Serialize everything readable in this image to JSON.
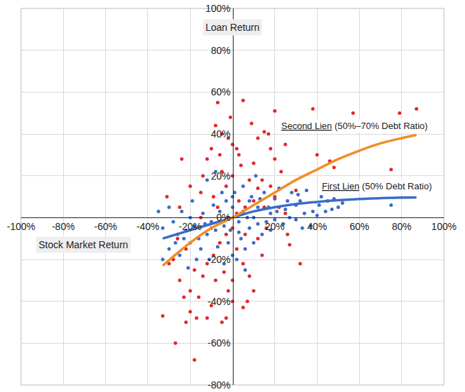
{
  "chart_data": {
    "type": "scatter",
    "x_label": "Stock Market Return",
    "y_label": "Loan Return",
    "xlim": [
      -100,
      100
    ],
    "ylim": [
      -80,
      100
    ],
    "xticks": [
      {
        "value": -100,
        "label": "-100%"
      },
      {
        "value": -80,
        "label": "-80%"
      },
      {
        "value": -60,
        "label": "-60%"
      },
      {
        "value": -40,
        "label": "-40%"
      },
      {
        "value": -20,
        "label": "-20%"
      },
      {
        "value": 20,
        "label": "20%"
      },
      {
        "value": 40,
        "label": "40%"
      },
      {
        "value": 60,
        "label": "60%"
      },
      {
        "value": 80,
        "label": "80%"
      },
      {
        "value": 100,
        "label": "100%"
      }
    ],
    "yticks": [
      {
        "value": -80,
        "label": "-80%"
      },
      {
        "value": -60,
        "label": "-60%"
      },
      {
        "value": -40,
        "label": "-40%"
      },
      {
        "value": -20,
        "label": "-20%"
      },
      {
        "value": 0,
        "label": "0%"
      },
      {
        "value": 20,
        "label": "20%"
      },
      {
        "value": 40,
        "label": "40%"
      },
      {
        "value": 60,
        "label": "60%"
      },
      {
        "value": 80,
        "label": "80%"
      },
      {
        "value": 100,
        "label": "100%"
      }
    ],
    "grid": true,
    "series": [
      {
        "name": "First Lien",
        "label": "(50% Debt Ratio)",
        "color": "#3a6bc6",
        "marker": "circle",
        "x": [
          75,
          52,
          48,
          45,
          42,
          38,
          35,
          32,
          30,
          28,
          25,
          22,
          20,
          18,
          15,
          12,
          10,
          8,
          5,
          3,
          0,
          -2,
          -4,
          -6,
          -8,
          -10,
          -12,
          -14,
          -16,
          -18,
          -20,
          -22,
          -24,
          -26,
          -28,
          -30,
          -33,
          -33,
          -35,
          -30,
          -25,
          -20,
          -15,
          -12,
          -8,
          -5,
          -2,
          0,
          2,
          4,
          6,
          8,
          10,
          12,
          14,
          16,
          18,
          20,
          24,
          27,
          30,
          34,
          37,
          40,
          44,
          47,
          50,
          -3,
          1,
          -7,
          -11,
          -17,
          -21,
          5,
          9,
          13,
          17,
          21,
          26,
          31,
          -1,
          3,
          7,
          -9,
          -13,
          -19,
          -23,
          -27,
          11,
          6,
          0,
          33,
          41,
          -4
        ],
        "values": [
          6,
          7,
          9,
          8,
          10,
          3,
          13,
          8,
          6,
          12,
          4,
          14,
          9,
          2,
          12,
          5,
          0,
          8,
          3,
          -2,
          5,
          0,
          -4,
          3,
          -6,
          -2,
          -8,
          2,
          -10,
          -4,
          -12,
          -6,
          3,
          -8,
          -2,
          -15,
          -20,
          -5,
          3,
          5,
          -18,
          0,
          -15,
          18,
          22,
          12,
          -12,
          -18,
          -20,
          -10,
          -15,
          -5,
          -12,
          -3,
          -8,
          -2,
          -6,
          -1,
          -3,
          0,
          -1,
          2,
          -4,
          1,
          3,
          4,
          5,
          8,
          12,
          -14,
          -20,
          -20,
          -24,
          15,
          10,
          9,
          5,
          3,
          8,
          11,
          -6,
          -7,
          0,
          6,
          -3,
          8,
          -10,
          -12,
          20,
          -25,
          10,
          -5,
          6,
          -22
        ],
        "fit": {
          "color": "#3b6cc7",
          "line_style": "solid",
          "x": [
            -33,
            -20,
            -10,
            0,
            10,
            20,
            30,
            40,
            50,
            60,
            70,
            80,
            87
          ],
          "values": [
            -10,
            -6,
            -3,
            0,
            3,
            5,
            6.5,
            7.5,
            8.3,
            8.9,
            9.3,
            9.6,
            9.7
          ]
        }
      },
      {
        "name": "Second Lien",
        "label": "(50%–70% Debt Ratio)",
        "color": "#e3262b",
        "marker": "circle",
        "x": [
          -33,
          -27,
          -18,
          -22,
          -17,
          87,
          79,
          57,
          38,
          31,
          25,
          20,
          5,
          -7,
          -8,
          -5,
          -2,
          0,
          3,
          15,
          17,
          20,
          23,
          30,
          40,
          46,
          48,
          75,
          32,
          27,
          26,
          10,
          5,
          7,
          0,
          -3,
          -5,
          -12,
          -16,
          -20,
          -25,
          -28,
          -30,
          -24,
          -31,
          -20,
          -15,
          -10,
          -12,
          -5,
          -3,
          0,
          4,
          8,
          10,
          12,
          14,
          18,
          20,
          22,
          25,
          15,
          10,
          6,
          2,
          0,
          -3,
          -6,
          -9,
          -12,
          -14,
          -18,
          -22,
          -26,
          -10,
          -7,
          -15,
          -18,
          -8,
          -4,
          2,
          5,
          8,
          12,
          16,
          0,
          -2,
          -10,
          9,
          -14,
          -6,
          3,
          6,
          -20,
          -23,
          14,
          -1,
          18,
          12,
          -9,
          -25,
          2
        ],
        "values": [
          -47,
          -60,
          -68,
          -50,
          -48,
          52,
          50,
          50,
          52,
          44,
          35,
          51,
          56,
          55,
          44,
          40,
          38,
          35,
          30,
          41,
          40,
          28,
          22,
          13,
          30,
          27,
          24,
          23,
          -22,
          -13,
          -8,
          -35,
          -43,
          -40,
          -40,
          -48,
          -50,
          -48,
          -38,
          -35,
          -30,
          -20,
          -22,
          28,
          10,
          15,
          12,
          33,
          28,
          22,
          15,
          20,
          25,
          18,
          26,
          14,
          18,
          15,
          10,
          5,
          2,
          5,
          8,
          5,
          2,
          -5,
          -8,
          -12,
          -18,
          -22,
          -28,
          -25,
          -15,
          -10,
          -5,
          5,
          0,
          -5,
          -30,
          -26,
          -15,
          -22,
          -28,
          -10,
          -5,
          -30,
          -35,
          -42,
          45,
          20,
          30,
          8,
          -8,
          -45,
          -38,
          -18,
          48,
          33,
          38,
          10,
          5,
          33
        ],
        "fit": {
          "color": "#f28c28",
          "line_style": "solid",
          "x": [
            -33,
            -20,
            -10,
            0,
            10,
            20,
            30,
            40,
            50,
            60,
            70,
            80,
            87
          ],
          "values": [
            -23,
            -12,
            -5,
            0,
            6,
            12,
            18,
            23,
            28,
            32,
            35.5,
            38,
            39.5
          ]
        }
      }
    ]
  }
}
